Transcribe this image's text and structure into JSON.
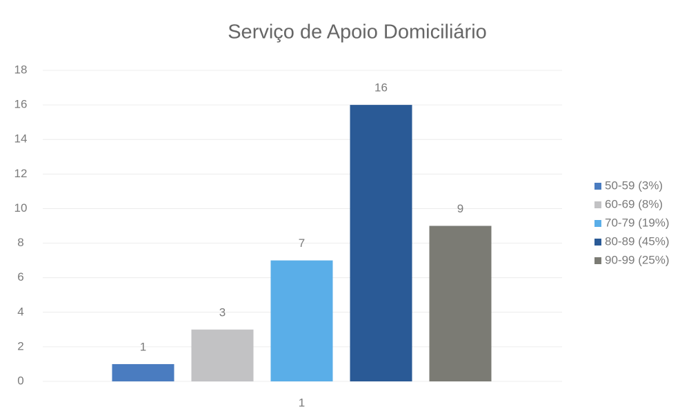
{
  "chart_data": {
    "type": "bar",
    "title": "Serviço de Apoio Domiciliário",
    "categories": [
      "1"
    ],
    "series": [
      {
        "name": "50-59 (3%)",
        "color": "#4a7cc0",
        "values": [
          1
        ]
      },
      {
        "name": "60-69 (8%)",
        "color": "#c2c2c4",
        "values": [
          3
        ]
      },
      {
        "name": "70-79 (19%)",
        "color": "#5aaee8",
        "values": [
          7
        ]
      },
      {
        "name": "80-89 (45%)",
        "color": "#2a5a96",
        "values": [
          16
        ]
      },
      {
        "name": "90-99 (25%)",
        "color": "#7b7b74",
        "values": [
          9
        ]
      }
    ],
    "ylim": [
      0,
      18
    ],
    "yticks": [
      0,
      2,
      4,
      6,
      8,
      10,
      12,
      14,
      16,
      18
    ],
    "grid": true,
    "legend": "right"
  }
}
